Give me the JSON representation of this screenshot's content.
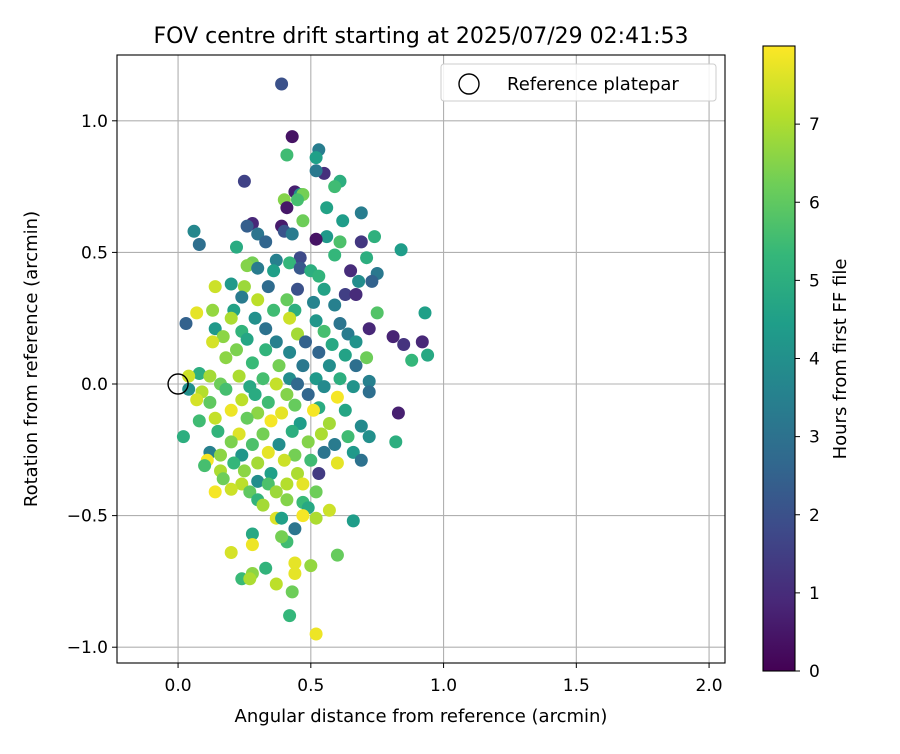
{
  "chart_data": {
    "type": "scatter",
    "title": "FOV centre drift starting at 2025/07/29 02:41:53",
    "xlabel": "Angular distance from reference (arcmin)",
    "ylabel": "Rotation from reference (arcmin)",
    "xlim": [
      -0.23,
      2.06
    ],
    "ylim": [
      -1.06,
      1.25
    ],
    "x_ticks": [
      0.0,
      0.5,
      1.0,
      1.5,
      2.0
    ],
    "x_tick_labels": [
      "0.0",
      "0.5",
      "1.0",
      "1.5",
      "2.0"
    ],
    "y_ticks": [
      -1.0,
      -0.5,
      0.0,
      0.5,
      1.0
    ],
    "y_tick_labels": [
      "−1.0",
      "−0.5",
      "0.0",
      "0.5",
      "1.0"
    ],
    "grid": true,
    "legend": {
      "placement": "top-right",
      "entries": [
        "Reference platepar"
      ]
    },
    "reference_point": {
      "x": 0.0,
      "y": 0.0,
      "marker": "open-circle"
    },
    "colorbar": {
      "label": "Hours from first FF file",
      "colormap": "viridis",
      "range": [
        0,
        8
      ],
      "ticks": [
        0,
        1,
        2,
        3,
        4,
        5,
        6,
        7
      ],
      "tick_labels": [
        "0",
        "1",
        "2",
        "3",
        "4",
        "5",
        "6",
        "7"
      ]
    },
    "colormap_stops": [
      "#440154",
      "#482878",
      "#3e4989",
      "#31688e",
      "#26828e",
      "#1f9e89",
      "#35b779",
      "#6ece58",
      "#b5de2b",
      "#fde725"
    ],
    "series": [
      {
        "points": [
          [
            0.39,
            1.14,
            2.0
          ],
          [
            0.43,
            0.94,
            0.4
          ],
          [
            0.53,
            0.89,
            3.4
          ],
          [
            0.52,
            0.86,
            4.5
          ],
          [
            0.41,
            0.87,
            5.5
          ],
          [
            0.55,
            0.8,
            1.1
          ],
          [
            0.52,
            0.81,
            3.2
          ],
          [
            0.25,
            0.77,
            1.6
          ],
          [
            0.61,
            0.77,
            5.0
          ],
          [
            0.59,
            0.75,
            5.5
          ],
          [
            0.44,
            0.73,
            0.7
          ],
          [
            0.46,
            0.72,
            3.9
          ],
          [
            0.47,
            0.72,
            6.3
          ],
          [
            0.4,
            0.7,
            6.5
          ],
          [
            0.45,
            0.7,
            5.6
          ],
          [
            0.56,
            0.67,
            4.6
          ],
          [
            0.41,
            0.67,
            0.5
          ],
          [
            0.69,
            0.65,
            3.4
          ],
          [
            0.28,
            0.61,
            0.9
          ],
          [
            0.26,
            0.6,
            2.4
          ],
          [
            0.39,
            0.6,
            0.6
          ],
          [
            0.47,
            0.62,
            6.2
          ],
          [
            0.62,
            0.62,
            4.4
          ],
          [
            0.06,
            0.58,
            3.7
          ],
          [
            0.3,
            0.57,
            3.1
          ],
          [
            0.4,
            0.58,
            2.1
          ],
          [
            0.43,
            0.57,
            3.3
          ],
          [
            0.56,
            0.56,
            4.3
          ],
          [
            0.74,
            0.56,
            5.1
          ],
          [
            0.33,
            0.54,
            2.6
          ],
          [
            0.52,
            0.55,
            0.4
          ],
          [
            0.61,
            0.54,
            5.7
          ],
          [
            0.69,
            0.54,
            1.3
          ],
          [
            0.08,
            0.53,
            2.9
          ],
          [
            0.22,
            0.52,
            4.9
          ],
          [
            0.84,
            0.51,
            4.4
          ],
          [
            0.59,
            0.49,
            5.3
          ],
          [
            0.71,
            0.48,
            5.0
          ],
          [
            0.46,
            0.48,
            1.8
          ],
          [
            0.37,
            0.47,
            3.5
          ],
          [
            0.28,
            0.46,
            6.3
          ],
          [
            0.42,
            0.46,
            5.3
          ],
          [
            0.26,
            0.45,
            6.5
          ],
          [
            0.3,
            0.44,
            3.3
          ],
          [
            0.46,
            0.44,
            2.2
          ],
          [
            0.36,
            0.43,
            4.5
          ],
          [
            0.5,
            0.43,
            5.0
          ],
          [
            0.65,
            0.43,
            1.0
          ],
          [
            0.75,
            0.42,
            3.2
          ],
          [
            0.53,
            0.41,
            5.2
          ],
          [
            0.73,
            0.39,
            2.5
          ],
          [
            0.68,
            0.39,
            3.9
          ],
          [
            0.2,
            0.38,
            4.3
          ],
          [
            0.25,
            0.37,
            6.8
          ],
          [
            0.14,
            0.37,
            7.4
          ],
          [
            0.34,
            0.37,
            2.8
          ],
          [
            0.45,
            0.36,
            2.0
          ],
          [
            0.55,
            0.36,
            4.6
          ],
          [
            0.63,
            0.34,
            1.5
          ],
          [
            0.67,
            0.34,
            1.0
          ],
          [
            0.24,
            0.33,
            3.3
          ],
          [
            0.3,
            0.32,
            7.2
          ],
          [
            0.41,
            0.32,
            6.1
          ],
          [
            0.51,
            0.31,
            3.6
          ],
          [
            0.59,
            0.3,
            3.5
          ],
          [
            0.13,
            0.28,
            6.7
          ],
          [
            0.21,
            0.28,
            4.6
          ],
          [
            0.36,
            0.28,
            5.5
          ],
          [
            0.44,
            0.28,
            5.0
          ],
          [
            0.75,
            0.27,
            5.8
          ],
          [
            0.93,
            0.27,
            4.5
          ],
          [
            0.07,
            0.27,
            7.7
          ],
          [
            0.03,
            0.23,
            2.5
          ],
          [
            0.2,
            0.25,
            7.0
          ],
          [
            0.29,
            0.25,
            4.0
          ],
          [
            0.42,
            0.25,
            7.4
          ],
          [
            0.52,
            0.24,
            4.2
          ],
          [
            0.61,
            0.23,
            3.1
          ],
          [
            0.72,
            0.21,
            0.9
          ],
          [
            0.81,
            0.18,
            0.8
          ],
          [
            0.14,
            0.21,
            4.3
          ],
          [
            0.24,
            0.2,
            5.2
          ],
          [
            0.33,
            0.21,
            3.0
          ],
          [
            0.45,
            0.19,
            6.9
          ],
          [
            0.55,
            0.2,
            5.6
          ],
          [
            0.64,
            0.19,
            3.3
          ],
          [
            0.92,
            0.16,
            0.9
          ],
          [
            0.85,
            0.15,
            1.2
          ],
          [
            0.17,
            0.18,
            6.6
          ],
          [
            0.26,
            0.17,
            4.7
          ],
          [
            0.37,
            0.16,
            3.5
          ],
          [
            0.48,
            0.16,
            2.5
          ],
          [
            0.58,
            0.15,
            4.8
          ],
          [
            0.67,
            0.16,
            4.1
          ],
          [
            0.13,
            0.16,
            7.5
          ],
          [
            0.94,
            0.11,
            4.8
          ],
          [
            0.88,
            0.09,
            5.3
          ],
          [
            0.71,
            0.1,
            6.2
          ],
          [
            0.22,
            0.13,
            6.4
          ],
          [
            0.33,
            0.13,
            5.2
          ],
          [
            0.42,
            0.12,
            3.7
          ],
          [
            0.53,
            0.12,
            2.6
          ],
          [
            0.63,
            0.11,
            4.6
          ],
          [
            0.18,
            0.1,
            6.6
          ],
          [
            0.28,
            0.08,
            5.4
          ],
          [
            0.38,
            0.07,
            6.3
          ],
          [
            0.47,
            0.07,
            3.2
          ],
          [
            0.57,
            0.07,
            3.9
          ],
          [
            0.67,
            0.07,
            2.9
          ],
          [
            0.08,
            0.04,
            5.0
          ],
          [
            0.12,
            0.03,
            6.9
          ],
          [
            0.23,
            0.03,
            7.0
          ],
          [
            0.32,
            0.02,
            5.6
          ],
          [
            0.42,
            0.02,
            3.9
          ],
          [
            0.52,
            0.02,
            4.3
          ],
          [
            0.61,
            0.02,
            5.0
          ],
          [
            0.72,
            0.01,
            3.5
          ],
          [
            0.04,
            0.03,
            7.4
          ],
          [
            0.16,
            0.0,
            6.2
          ],
          [
            0.27,
            -0.01,
            4.8
          ],
          [
            0.37,
            0.0,
            7.3
          ],
          [
            0.45,
            0.0,
            2.7
          ],
          [
            0.55,
            -0.01,
            3.8
          ],
          [
            0.66,
            -0.01,
            4.1
          ],
          [
            0.04,
            -0.02,
            4.0
          ],
          [
            0.09,
            -0.03,
            7.1
          ],
          [
            0.18,
            -0.02,
            5.6
          ],
          [
            0.29,
            -0.04,
            4.9
          ],
          [
            0.41,
            -0.04,
            6.5
          ],
          [
            0.49,
            -0.04,
            2.6
          ],
          [
            0.6,
            -0.05,
            7.9
          ],
          [
            0.72,
            -0.03,
            2.9
          ],
          [
            0.07,
            -0.06,
            7.5
          ],
          [
            0.12,
            -0.07,
            6.0
          ],
          [
            0.24,
            -0.06,
            7.2
          ],
          [
            0.34,
            -0.07,
            5.5
          ],
          [
            0.44,
            -0.08,
            6.1
          ],
          [
            0.53,
            -0.09,
            4.9
          ],
          [
            0.63,
            -0.1,
            4.7
          ],
          [
            0.83,
            -0.11,
            0.7
          ],
          [
            0.2,
            -0.1,
            7.8
          ],
          [
            0.3,
            -0.11,
            6.6
          ],
          [
            0.39,
            -0.11,
            7.7
          ],
          [
            0.51,
            -0.1,
            7.9
          ],
          [
            0.08,
            -0.14,
            5.5
          ],
          [
            0.14,
            -0.13,
            7.3
          ],
          [
            0.26,
            -0.13,
            6.1
          ],
          [
            0.35,
            -0.14,
            7.9
          ],
          [
            0.46,
            -0.15,
            4.4
          ],
          [
            0.57,
            -0.15,
            6.9
          ],
          [
            0.69,
            -0.16,
            3.8
          ],
          [
            0.15,
            -0.18,
            5.2
          ],
          [
            0.23,
            -0.19,
            7.6
          ],
          [
            0.32,
            -0.19,
            6.3
          ],
          [
            0.43,
            -0.18,
            5.0
          ],
          [
            0.54,
            -0.19,
            7.0
          ],
          [
            0.64,
            -0.2,
            5.5
          ],
          [
            0.72,
            -0.2,
            4.0
          ],
          [
            0.02,
            -0.2,
            5.0
          ],
          [
            0.2,
            -0.22,
            6.4
          ],
          [
            0.28,
            -0.23,
            5.7
          ],
          [
            0.38,
            -0.23,
            3.9
          ],
          [
            0.49,
            -0.22,
            6.5
          ],
          [
            0.59,
            -0.23,
            3.3
          ],
          [
            0.82,
            -0.22,
            5.0
          ],
          [
            0.12,
            -0.26,
            3.5
          ],
          [
            0.16,
            -0.27,
            6.6
          ],
          [
            0.24,
            -0.27,
            4.2
          ],
          [
            0.34,
            -0.26,
            7.7
          ],
          [
            0.44,
            -0.27,
            6.3
          ],
          [
            0.55,
            -0.26,
            3.1
          ],
          [
            0.66,
            -0.26,
            4.3
          ],
          [
            0.11,
            -0.29,
            7.9
          ],
          [
            0.21,
            -0.3,
            5.3
          ],
          [
            0.3,
            -0.3,
            6.9
          ],
          [
            0.4,
            -0.29,
            7.4
          ],
          [
            0.5,
            -0.29,
            5.5
          ],
          [
            0.6,
            -0.3,
            7.7
          ],
          [
            0.69,
            -0.29,
            3.0
          ],
          [
            0.1,
            -0.31,
            5.6
          ],
          [
            0.16,
            -0.33,
            7.0
          ],
          [
            0.25,
            -0.33,
            6.6
          ],
          [
            0.35,
            -0.34,
            4.5
          ],
          [
            0.45,
            -0.34,
            7.0
          ],
          [
            0.53,
            -0.34,
            1.4
          ],
          [
            0.17,
            -0.36,
            6.2
          ],
          [
            0.3,
            -0.37,
            3.9
          ],
          [
            0.41,
            -0.38,
            7.1
          ],
          [
            0.24,
            -0.38,
            7.2
          ],
          [
            0.34,
            -0.38,
            5.7
          ],
          [
            0.47,
            -0.38,
            7.7
          ],
          [
            0.2,
            -0.4,
            7.4
          ],
          [
            0.27,
            -0.41,
            6.0
          ],
          [
            0.37,
            -0.41,
            6.8
          ],
          [
            0.52,
            -0.41,
            6.2
          ],
          [
            0.14,
            -0.41,
            7.9
          ],
          [
            0.3,
            -0.44,
            5.2
          ],
          [
            0.41,
            -0.44,
            6.5
          ],
          [
            0.47,
            -0.45,
            5.4
          ],
          [
            0.32,
            -0.46,
            6.9
          ],
          [
            0.49,
            -0.47,
            4.8
          ],
          [
            0.57,
            -0.48,
            7.4
          ],
          [
            0.47,
            -0.5,
            7.9
          ],
          [
            0.37,
            -0.51,
            7.6
          ],
          [
            0.39,
            -0.51,
            4.5
          ],
          [
            0.52,
            -0.51,
            7.0
          ],
          [
            0.66,
            -0.52,
            4.4
          ],
          [
            0.28,
            -0.57,
            4.8
          ],
          [
            0.41,
            -0.6,
            5.5
          ],
          [
            0.39,
            -0.58,
            6.3
          ],
          [
            0.44,
            -0.55,
            3.1
          ],
          [
            0.28,
            -0.61,
            7.8
          ],
          [
            0.2,
            -0.64,
            7.5
          ],
          [
            0.6,
            -0.65,
            6.1
          ],
          [
            0.44,
            -0.68,
            7.7
          ],
          [
            0.5,
            -0.69,
            6.7
          ],
          [
            0.33,
            -0.7,
            5.2
          ],
          [
            0.28,
            -0.72,
            6.6
          ],
          [
            0.44,
            -0.72,
            7.7
          ],
          [
            0.24,
            -0.74,
            5.4
          ],
          [
            0.27,
            -0.74,
            7.0
          ],
          [
            0.37,
            -0.76,
            7.2
          ],
          [
            0.43,
            -0.79,
            6.2
          ],
          [
            0.42,
            -0.88,
            5.3
          ],
          [
            0.52,
            -0.95,
            7.8
          ]
        ]
      }
    ]
  }
}
